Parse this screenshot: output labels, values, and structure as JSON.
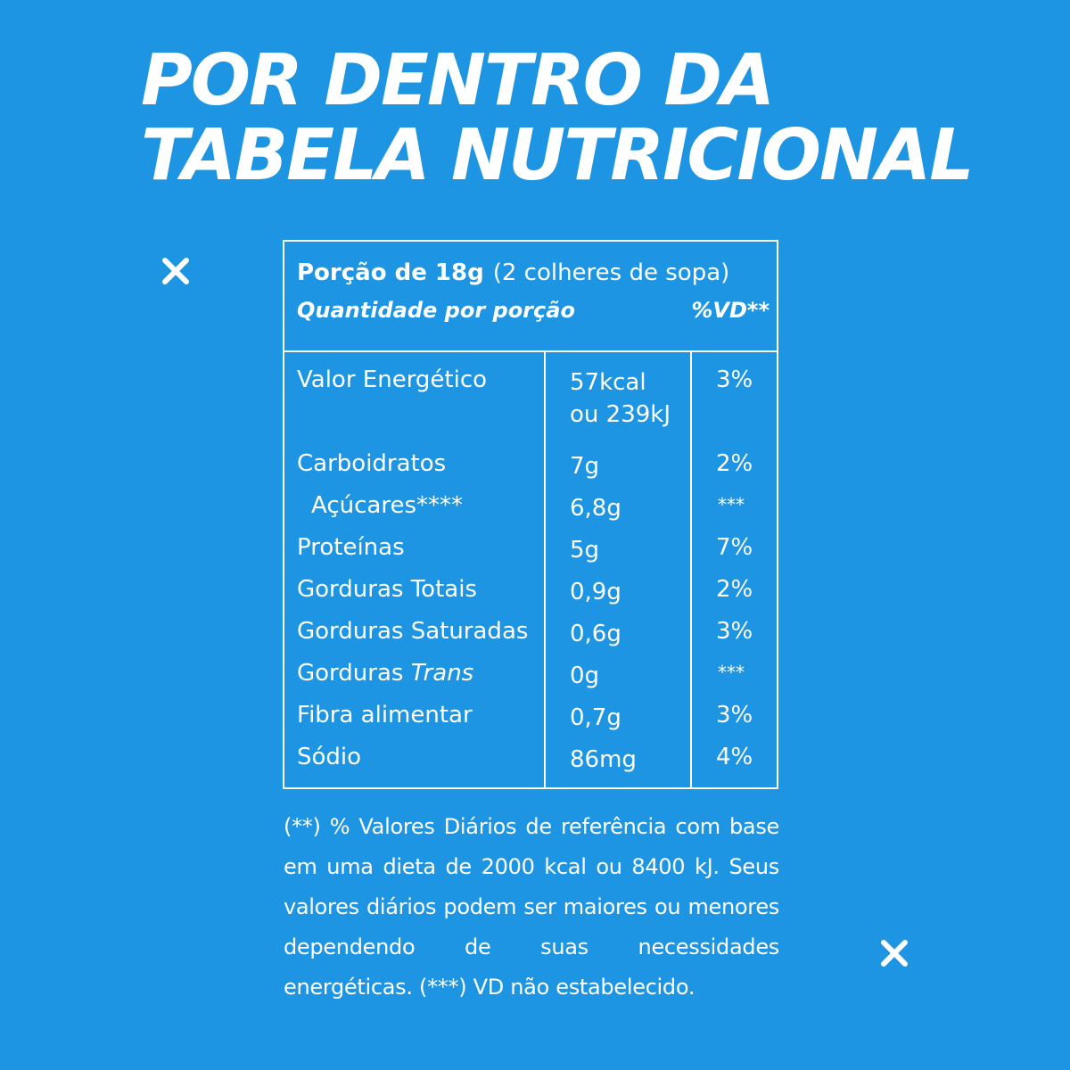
{
  "title": {
    "line1": "POR DENTRO DA",
    "line2": "TABELA NUTRICIONAL"
  },
  "decorations": [
    "close-icon",
    "close-icon"
  ],
  "table": {
    "portion_label": "Porção de 18g",
    "portion_detail": "(2 colheres de sopa)",
    "quantity_header": "Quantidade por porção",
    "vd_header": "%VD**",
    "rows": [
      {
        "name": "Valor Energético",
        "value_line1": "57kcal",
        "value_line2": "ou 239kJ",
        "vd": "3%"
      },
      {
        "name": "Carboidratos",
        "value": "7g",
        "vd": "2%"
      },
      {
        "name": "Açúcares****",
        "value": "6,8g",
        "vd": "***"
      },
      {
        "name": "Proteínas",
        "value": "5g",
        "vd": "7%"
      },
      {
        "name": "Gorduras Totais",
        "value": "0,9g",
        "vd": "2%"
      },
      {
        "name": "Gorduras Saturadas",
        "value": "0,6g",
        "vd": "3%"
      },
      {
        "name_prefix": "Gorduras ",
        "name_italic": "Trans",
        "value": "0g",
        "vd": "***"
      },
      {
        "name": "Fibra alimentar",
        "value": "0,7g",
        "vd": "3%"
      },
      {
        "name": "Sódio",
        "value": "86mg",
        "vd": "4%"
      }
    ]
  },
  "footnote": "(**) % Valores Diários de referência com base em uma dieta de 2000 kcal ou 8400 kJ. Seus valores diários podem ser maiores ou menores dependendo de suas necessidades energéticas. (***) VD não estabelecido.",
  "colors": {
    "background": "#1d95e3",
    "foreground": "#ffffff"
  }
}
